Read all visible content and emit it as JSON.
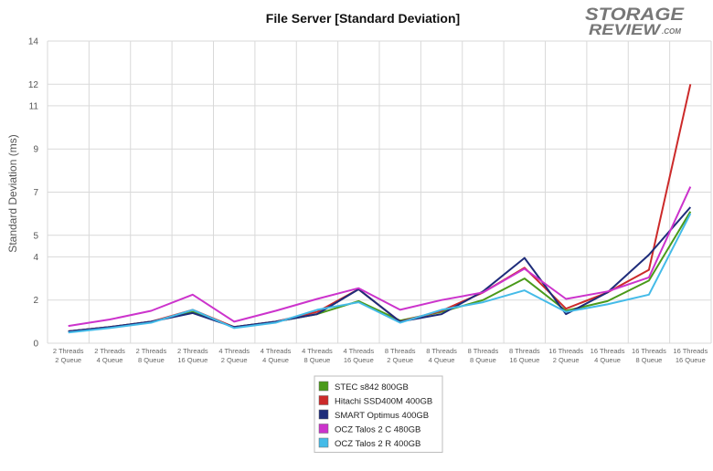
{
  "chart_data": {
    "type": "line",
    "title": "File Server [Standard Deviation]",
    "ylabel": "Standard Deviation (ms)",
    "xlabel": "",
    "ylim": [
      0,
      14
    ],
    "yticks": [
      0,
      2,
      4,
      5,
      7,
      9,
      11,
      12,
      14
    ],
    "grid": true,
    "legend_position": "bottom",
    "categories": [
      [
        "2 Threads",
        "2 Queue"
      ],
      [
        "2 Threads",
        "4 Queue"
      ],
      [
        "2 Threads",
        "8 Queue"
      ],
      [
        "2 Threads",
        "16 Queue"
      ],
      [
        "4 Threads",
        "2 Queue"
      ],
      [
        "4 Threads",
        "4 Queue"
      ],
      [
        "4 Threads",
        "8 Queue"
      ],
      [
        "4 Threads",
        "16 Queue"
      ],
      [
        "8 Threads",
        "2 Queue"
      ],
      [
        "8 Threads",
        "4 Queue"
      ],
      [
        "8 Threads",
        "8 Queue"
      ],
      [
        "8 Threads",
        "16 Queue"
      ],
      [
        "16 Threads",
        "2 Queue"
      ],
      [
        "16 Threads",
        "4 Queue"
      ],
      [
        "16 Threads",
        "8 Queue"
      ],
      [
        "16 Threads",
        "16 Queue"
      ]
    ],
    "series": [
      {
        "name": "STEC s842 800GB",
        "color": "#4a9a1a",
        "values": [
          0.55,
          0.75,
          1.0,
          1.45,
          0.75,
          1.0,
          1.35,
          1.95,
          1.05,
          1.45,
          2.0,
          3.0,
          1.5,
          1.95,
          2.9,
          6.1
        ]
      },
      {
        "name": "Hitachi SSD400M 400GB",
        "color": "#cc2a2a",
        "values": [
          0.55,
          0.75,
          1.0,
          1.55,
          0.75,
          1.0,
          1.45,
          2.5,
          1.0,
          1.5,
          2.35,
          3.5,
          1.6,
          2.35,
          3.4,
          12.0
        ]
      },
      {
        "name": "SMART Optimus 400GB",
        "color": "#1e2c7a",
        "values": [
          0.55,
          0.75,
          1.0,
          1.4,
          0.75,
          1.0,
          1.35,
          2.5,
          1.0,
          1.35,
          2.4,
          3.95,
          1.35,
          2.35,
          4.1,
          6.3
        ]
      },
      {
        "name": "OCZ Talos 2 C 480GB",
        "color": "#cc33cc",
        "values": [
          0.8,
          1.1,
          1.5,
          2.25,
          1.0,
          1.5,
          2.05,
          2.55,
          1.55,
          2.0,
          2.35,
          3.45,
          2.05,
          2.4,
          3.05,
          7.25
        ]
      },
      {
        "name": "OCZ Talos 2 R 400GB",
        "color": "#44bbe8",
        "values": [
          0.5,
          0.7,
          0.95,
          1.55,
          0.7,
          0.95,
          1.55,
          1.9,
          0.95,
          1.55,
          1.9,
          2.45,
          1.45,
          1.8,
          2.25,
          6.0
        ]
      }
    ]
  },
  "watermark": {
    "line1": "STORAGE",
    "line2": "REVIEW",
    "suffix": ".COM"
  }
}
